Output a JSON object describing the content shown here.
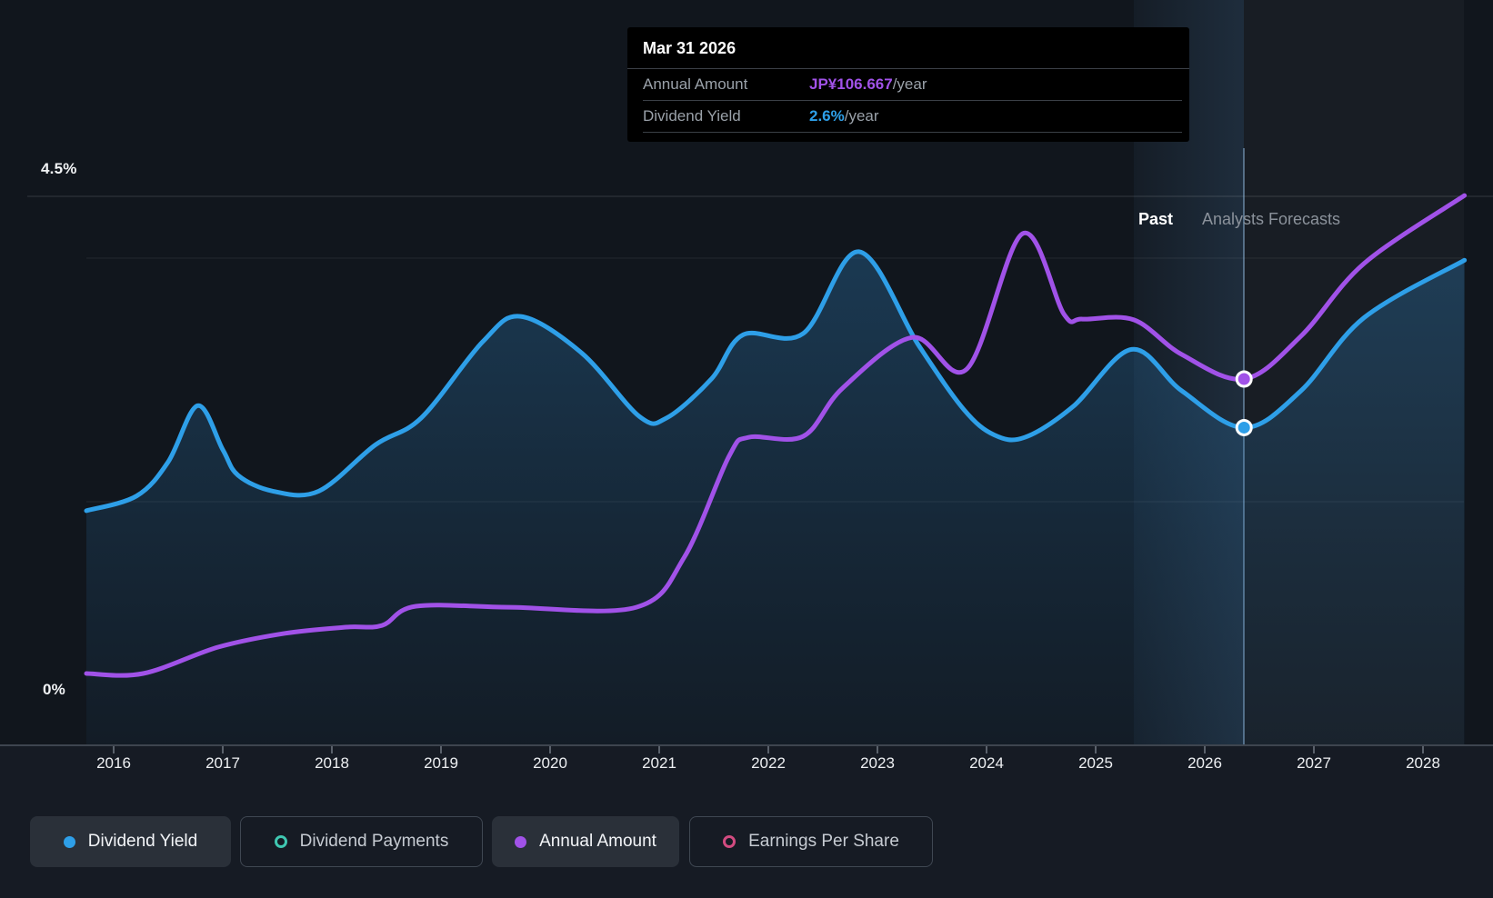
{
  "colors": {
    "background": "#161b24",
    "plot_background": "#11161d",
    "blue": "#2E9FE8",
    "purple": "#A152E8",
    "teal": "#3FC7B1",
    "pink": "#D24B80",
    "tooltip_bg": "#000000",
    "gridline": "#3f464f",
    "axis": "#3E454F"
  },
  "tooltip": {
    "date": "Mar 31 2026",
    "rows": [
      {
        "label": "Annual Amount",
        "value": "JP¥106.667",
        "suffix": "/year",
        "color_key": "purple"
      },
      {
        "label": "Dividend Yield",
        "value": "2.6%",
        "suffix": "/year",
        "color_key": "blue"
      }
    ]
  },
  "chart": {
    "past_label": "Past",
    "forecasts_label": "Analysts Forecasts"
  },
  "axis": {
    "y_max_label": "4.5%",
    "y_min_label": "0%",
    "years": [
      "2016",
      "2017",
      "2018",
      "2019",
      "2020",
      "2021",
      "2022",
      "2023",
      "2024",
      "2025",
      "2026",
      "2027",
      "2028"
    ]
  },
  "legend": [
    {
      "label": "Dividend Yield",
      "active": true,
      "marker": "filled",
      "color_key": "blue"
    },
    {
      "label": "Dividend Payments",
      "active": false,
      "marker": "ring",
      "color_key": "teal"
    },
    {
      "label": "Annual Amount",
      "active": true,
      "marker": "filled",
      "color_key": "purple"
    },
    {
      "label": "Earnings Per Share",
      "active": false,
      "marker": "ring",
      "color_key": "pink"
    }
  ],
  "chart_data": {
    "type": "line",
    "title": "Dividend history and forecast",
    "x_range": [
      2015.75,
      2028.4
    ],
    "y_left_axis": {
      "unit": "%",
      "min": 0,
      "max": 4.5,
      "gridlines_pct": [
        4.5,
        4.0,
        2.0,
        0.0
      ]
    },
    "forecast_boundary": {
      "date": "Mar 31 2026",
      "year": 2026.36
    },
    "marked_point": {
      "date": "Mar 31 2026",
      "annual_amount": "JP¥106.667/year",
      "dividend_yield": "2.6%/year"
    },
    "legend_position": "bottom-left",
    "series": [
      {
        "name": "Dividend Yield",
        "unit": "percent",
        "color_key": "blue",
        "area_fill": true,
        "points": [
          [
            2015.75,
            1.92
          ],
          [
            2016.21,
            2.04
          ],
          [
            2016.5,
            2.32
          ],
          [
            2016.77,
            2.78
          ],
          [
            2017.0,
            2.42
          ],
          [
            2017.14,
            2.21
          ],
          [
            2017.46,
            2.08
          ],
          [
            2017.88,
            2.08
          ],
          [
            2018.4,
            2.46
          ],
          [
            2018.82,
            2.68
          ],
          [
            2019.38,
            3.3
          ],
          [
            2019.73,
            3.51
          ],
          [
            2020.29,
            3.21
          ],
          [
            2020.82,
            2.69
          ],
          [
            2021.07,
            2.68
          ],
          [
            2021.48,
            3.0
          ],
          [
            2021.77,
            3.36
          ],
          [
            2022.32,
            3.37
          ],
          [
            2022.83,
            4.04
          ],
          [
            2023.38,
            3.27
          ],
          [
            2023.79,
            2.75
          ],
          [
            2024.07,
            2.54
          ],
          [
            2024.35,
            2.52
          ],
          [
            2024.79,
            2.77
          ],
          [
            2025.33,
            3.24
          ],
          [
            2025.79,
            2.9
          ],
          [
            2026.36,
            2.6
          ],
          [
            2026.88,
            2.9
          ],
          [
            2027.46,
            3.5
          ],
          [
            2028.38,
            3.97
          ]
        ]
      },
      {
        "name": "Annual Amount",
        "unit": "JPY_per_year",
        "color_key": "purple",
        "area_fill": false,
        "points": [
          [
            2015.75,
            20.9
          ],
          [
            2016.27,
            20.9
          ],
          [
            2016.96,
            28.6
          ],
          [
            2017.57,
            32.6
          ],
          [
            2018.13,
            34.4
          ],
          [
            2018.46,
            34.9
          ],
          [
            2018.77,
            40.5
          ],
          [
            2019.63,
            40.2
          ],
          [
            2020.79,
            40.2
          ],
          [
            2021.23,
            54.8
          ],
          [
            2021.64,
            84.2
          ],
          [
            2021.82,
            89.7
          ],
          [
            2022.32,
            90.0
          ],
          [
            2022.68,
            104.0
          ],
          [
            2023.32,
            118.8
          ],
          [
            2023.82,
            109.6
          ],
          [
            2024.33,
            149.0
          ],
          [
            2024.71,
            125.5
          ],
          [
            2024.88,
            124.1
          ],
          [
            2025.35,
            123.9
          ],
          [
            2025.79,
            113.8
          ],
          [
            2026.36,
            106.667
          ],
          [
            2026.88,
            119.1
          ],
          [
            2027.46,
            140.3
          ],
          [
            2028.38,
            160.1
          ]
        ]
      },
      {
        "name": "Dividend Payments",
        "color_key": "teal",
        "visible": false,
        "points": []
      },
      {
        "name": "Earnings Per Share",
        "color_key": "pink",
        "visible": false,
        "points": []
      }
    ]
  }
}
